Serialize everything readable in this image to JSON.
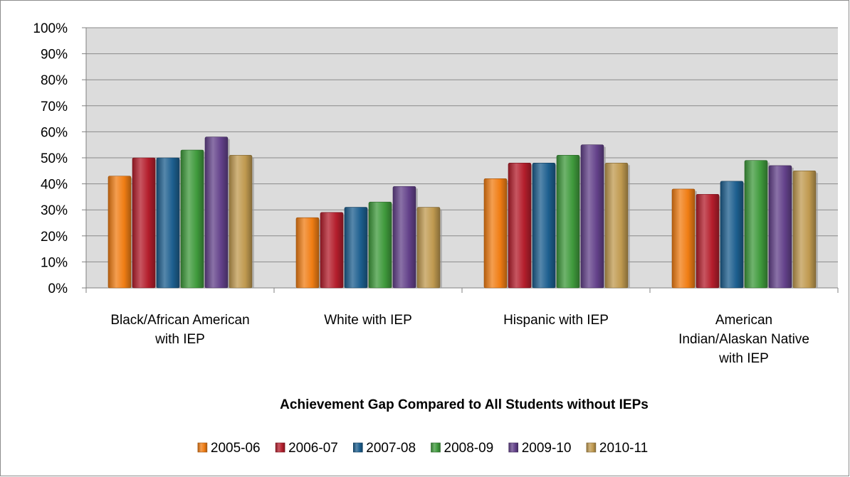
{
  "chart_data": {
    "type": "bar",
    "title": "",
    "xlabel": "Achievement Gap Compared to All Students without IEPs",
    "ylabel": "",
    "ylim": [
      0,
      100
    ],
    "yticks": [
      "0%",
      "10%",
      "20%",
      "30%",
      "40%",
      "50%",
      "60%",
      "70%",
      "80%",
      "90%",
      "100%"
    ],
    "grid": true,
    "legend_position": "bottom",
    "categories": [
      [
        "Black/African American",
        "with IEP"
      ],
      [
        "White with IEP"
      ],
      [
        "Hispanic with IEP"
      ],
      [
        "American",
        "Indian/Alaskan Native",
        "with IEP"
      ]
    ],
    "series": [
      {
        "name": "2005-06",
        "color": "#f07d14",
        "values": [
          43,
          27,
          42,
          38
        ]
      },
      {
        "name": "2006-07",
        "color": "#b41e2c",
        "values": [
          50,
          29,
          48,
          36
        ]
      },
      {
        "name": "2007-08",
        "color": "#1d5f8f",
        "values": [
          50,
          31,
          48,
          41
        ]
      },
      {
        "name": "2008-09",
        "color": "#3f9a3c",
        "values": [
          53,
          33,
          51,
          49
        ]
      },
      {
        "name": "2009-10",
        "color": "#63418a",
        "values": [
          58,
          39,
          55,
          47
        ]
      },
      {
        "name": "2010-11",
        "color": "#c09a50",
        "values": [
          51,
          31,
          48,
          45
        ]
      }
    ]
  }
}
